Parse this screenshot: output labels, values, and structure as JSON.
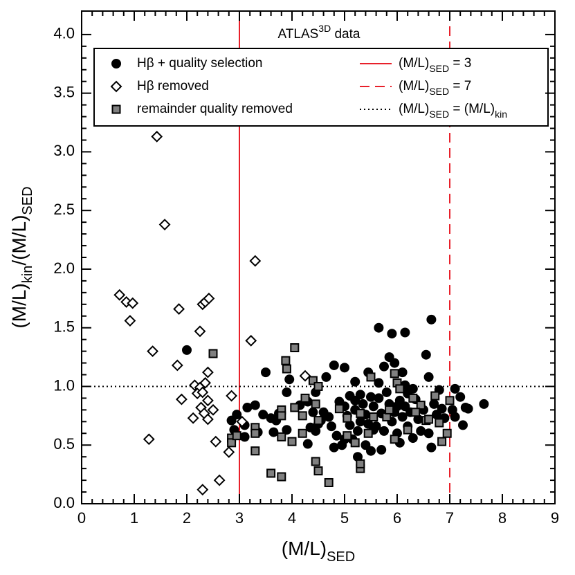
{
  "chart_data": {
    "type": "scatter",
    "title": [
      "ATLAS",
      "3D",
      " data"
    ],
    "xlabel": [
      "(M/L)",
      "SED"
    ],
    "ylabel": [
      "(M/L)",
      "kin",
      "/(M/L)",
      "SED"
    ],
    "xlim": [
      0,
      9
    ],
    "ylim": [
      0,
      4.2
    ],
    "xticks": [
      0,
      1,
      2,
      3,
      4,
      5,
      6,
      7,
      8,
      9
    ],
    "yticks": [
      {
        "value": 0,
        "label": "0.0"
      },
      {
        "value": 0.5,
        "label": "0.5"
      },
      {
        "value": 1,
        "label": "1.0"
      },
      {
        "value": 1.5,
        "label": "1.5"
      },
      {
        "value": 2,
        "label": "2.0"
      },
      {
        "value": 2.5,
        "label": "2.5"
      },
      {
        "value": 3,
        "label": "3.0"
      },
      {
        "value": 3.5,
        "label": "3.5"
      },
      {
        "value": 4,
        "label": "4.0"
      }
    ],
    "series": [
      {
        "name": "Hβ + quality selection",
        "marker": "circle",
        "color": "#000000",
        "x": [
          2.0,
          2.95,
          3.15,
          3.3,
          2.85,
          2.9,
          3.1,
          3.35,
          3.6,
          3.65,
          3.5,
          3.75,
          3.7,
          3.9,
          3.95,
          3.9,
          4.15,
          4.3,
          4.3,
          4.4,
          4.45,
          4.45,
          4.5,
          4.6,
          4.65,
          4.7,
          4.75,
          4.8,
          4.8,
          4.85,
          4.9,
          4.95,
          5.0,
          5.0,
          5.05,
          5.1,
          5.1,
          5.15,
          5.2,
          5.2,
          5.25,
          5.25,
          5.3,
          5.3,
          5.35,
          5.4,
          5.4,
          5.45,
          5.45,
          5.5,
          5.5,
          5.55,
          5.6,
          5.65,
          5.65,
          5.7,
          5.7,
          5.75,
          5.75,
          5.8,
          5.85,
          5.85,
          5.9,
          5.9,
          5.95,
          5.95,
          6.0,
          6.05,
          6.05,
          6.1,
          6.15,
          6.15,
          6.15,
          6.2,
          6.2,
          6.25,
          6.3,
          6.35,
          6.4,
          6.45,
          6.5,
          6.55,
          6.6,
          6.6,
          6.65,
          6.65,
          6.7,
          6.75,
          6.8,
          6.85,
          6.9,
          7.05,
          7.1,
          7.1,
          7.2,
          7.25,
          7.35,
          7.65,
          6.0,
          5.55,
          4.55,
          3.45,
          3.1,
          5.0,
          4.35,
          6.3,
          6.1,
          7.3,
          5.2,
          5.65
        ],
        "values": [
          1.31,
          0.76,
          0.82,
          0.84,
          0.71,
          0.63,
          0.67,
          0.61,
          0.73,
          0.61,
          1.12,
          0.77,
          0.71,
          0.63,
          1.06,
          0.95,
          0.84,
          0.51,
          0.87,
          0.78,
          0.95,
          0.62,
          0.68,
          0.78,
          1.08,
          0.74,
          0.66,
          0.48,
          1.18,
          0.58,
          0.87,
          0.5,
          0.83,
          1.16,
          0.75,
          0.67,
          0.92,
          0.55,
          0.8,
          0.88,
          0.62,
          0.4,
          0.7,
          0.93,
          0.85,
          0.76,
          0.5,
          1.12,
          0.68,
          0.91,
          0.45,
          0.83,
          0.66,
          1.5,
          1.03,
          0.77,
          0.46,
          0.62,
          1.17,
          0.95,
          1.25,
          0.85,
          1.45,
          0.7,
          0.78,
          1.2,
          0.6,
          0.88,
          0.52,
          0.74,
          1.46,
          1.01,
          0.83,
          0.66,
          0.94,
          0.78,
          0.56,
          0.89,
          0.72,
          0.62,
          0.8,
          1.27,
          1.08,
          0.6,
          1.57,
          0.48,
          0.85,
          0.76,
          0.97,
          0.81,
          0.73,
          0.8,
          0.98,
          0.74,
          0.91,
          0.67,
          0.81,
          0.85,
          0.83,
          0.63,
          0.71,
          0.76,
          0.57,
          0.55,
          0.65,
          0.98,
          1.12,
          0.82,
          1.04,
          0.9
        ]
      },
      {
        "name": "Hβ removed",
        "marker": "diamond",
        "color": "#ffffff",
        "x": [
          1.43,
          1.58,
          3.3,
          0.72,
          0.85,
          0.97,
          0.92,
          1.85,
          2.3,
          2.35,
          2.42,
          2.25,
          1.35,
          3.22,
          1.82,
          2.4,
          2.15,
          2.25,
          2.35,
          2.2,
          2.3,
          2.4,
          1.9,
          2.5,
          2.27,
          2.33,
          2.12,
          2.85,
          2.4,
          4.25,
          2.55,
          1.28,
          2.8,
          2.62,
          2.3,
          3.05
        ],
        "values": [
          3.13,
          2.38,
          2.07,
          1.78,
          1.72,
          1.71,
          1.56,
          1.66,
          1.7,
          1.72,
          1.75,
          1.47,
          1.3,
          1.39,
          1.18,
          1.12,
          1.01,
          0.99,
          1.03,
          0.94,
          0.95,
          0.88,
          0.89,
          0.8,
          0.82,
          0.77,
          0.73,
          0.92,
          0.72,
          1.09,
          0.53,
          0.55,
          0.44,
          0.2,
          0.12,
          0.7
        ]
      },
      {
        "name": "remainder quality removed",
        "marker": "square",
        "color": "#808080",
        "x": [
          2.5,
          4.05,
          3.88,
          3.9,
          4.4,
          4.5,
          5.5,
          5.95,
          6.0,
          3.3,
          3.3,
          3.3,
          2.85,
          2.85,
          2.95,
          3.8,
          3.8,
          3.8,
          3.8,
          3.6,
          4.0,
          4.05,
          4.2,
          4.25,
          4.45,
          4.45,
          4.5,
          4.7,
          4.2,
          4.5,
          4.9,
          5.05,
          5.2,
          5.3,
          5.3,
          5.45,
          5.55,
          5.3,
          5.8,
          5.85,
          5.95,
          6.05,
          6.3,
          6.45,
          6.35,
          6.55,
          6.6,
          6.72,
          6.8,
          6.85,
          6.95,
          7.0,
          6.2,
          5.05
        ],
        "values": [
          1.28,
          1.33,
          1.22,
          1.15,
          1.05,
          1.0,
          1.08,
          1.11,
          1.03,
          0.65,
          0.45,
          0.6,
          0.56,
          0.52,
          0.58,
          0.8,
          0.57,
          0.75,
          0.23,
          0.26,
          0.53,
          0.82,
          0.75,
          0.9,
          0.85,
          0.36,
          0.28,
          0.18,
          0.6,
          0.71,
          0.81,
          0.73,
          0.52,
          0.3,
          0.34,
          0.6,
          0.74,
          0.77,
          0.74,
          0.8,
          0.55,
          0.98,
          0.9,
          0.84,
          0.78,
          0.71,
          0.72,
          0.92,
          0.69,
          0.53,
          0.6,
          0.88,
          0.63,
          0.58
        ]
      }
    ],
    "reference_lines": [
      {
        "name": [
          "(M/L)",
          "SED",
          " = 3"
        ],
        "orientation": "vertical",
        "value": 3,
        "color": "#e8202a",
        "style": "solid"
      },
      {
        "name": [
          "(M/L)",
          "SED",
          " = 7"
        ],
        "orientation": "vertical",
        "value": 7,
        "color": "#e8202a",
        "style": "dashed"
      },
      {
        "name": [
          "(M/L)",
          "SED",
          " = (M/L)",
          "kin"
        ],
        "orientation": "horizontal",
        "value": 1,
        "color": "#000000",
        "style": "dotted"
      }
    ]
  }
}
